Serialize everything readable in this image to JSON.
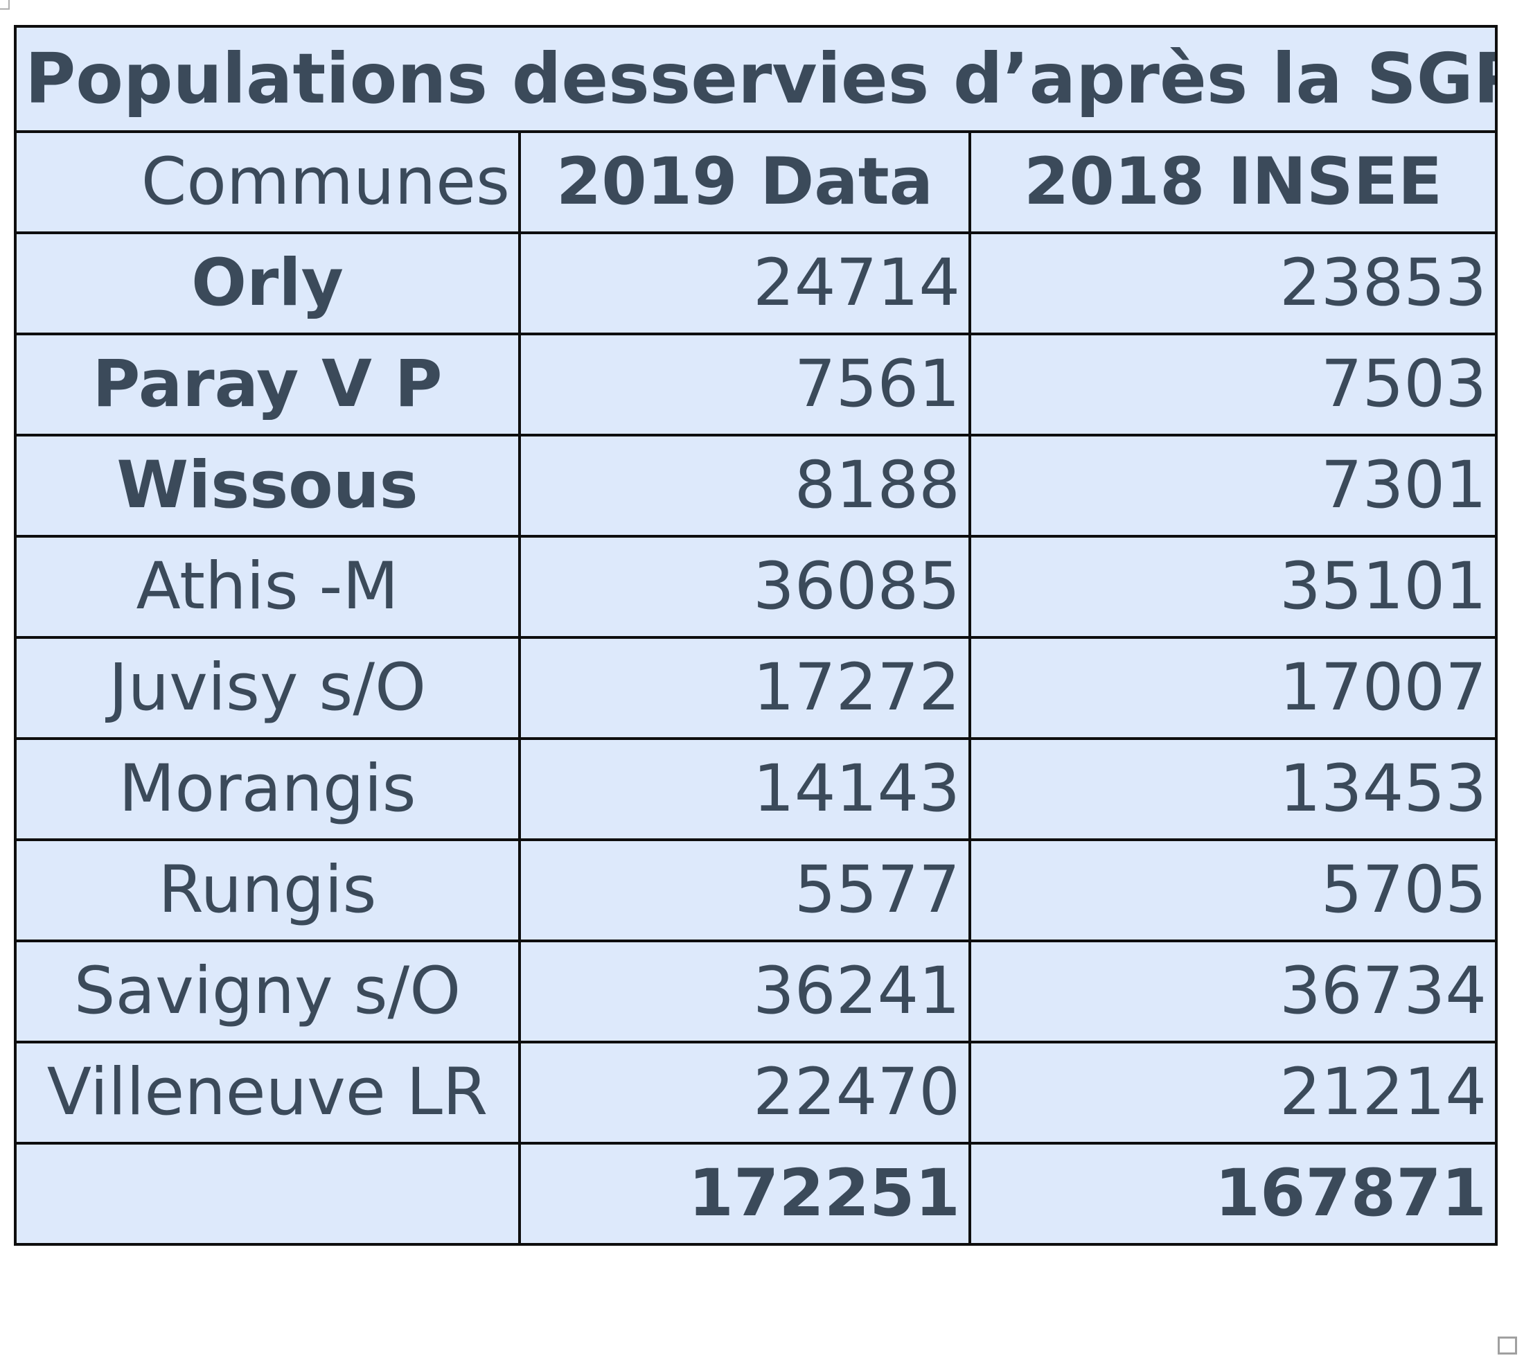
{
  "table": {
    "title": "Populations desservies d’après la SGP",
    "headers": [
      "Communes",
      "2019 Data",
      "2018 INSEE"
    ],
    "rows": [
      {
        "commune": "Orly",
        "y2019": "24714",
        "y2018": "23853",
        "bold": true
      },
      {
        "commune": "Paray V P",
        "y2019": "7561",
        "y2018": "7503",
        "bold": true
      },
      {
        "commune": "Wissous",
        "y2019": "8188",
        "y2018": "7301",
        "bold": true
      },
      {
        "commune": "Athis -M",
        "y2019": "36085",
        "y2018": "35101",
        "bold": false
      },
      {
        "commune": "Juvisy s/O",
        "y2019": "17272",
        "y2018": "17007",
        "bold": false
      },
      {
        "commune": "Morangis",
        "y2019": "14143",
        "y2018": "13453",
        "bold": false
      },
      {
        "commune": "Rungis",
        "y2019": "5577",
        "y2018": "5705",
        "bold": false
      },
      {
        "commune": "Savigny s/O",
        "y2019": "36241",
        "y2018": "36734",
        "bold": false
      },
      {
        "commune": "Villeneuve LR",
        "y2019": "22470",
        "y2018": "21214",
        "bold": false
      }
    ],
    "total": {
      "commune": "",
      "y2019": "172251",
      "y2018": "167871"
    }
  },
  "colors": {
    "cell_background": "#dde9fb",
    "text": "#3b4a5a",
    "border": "#0e0e0e"
  }
}
